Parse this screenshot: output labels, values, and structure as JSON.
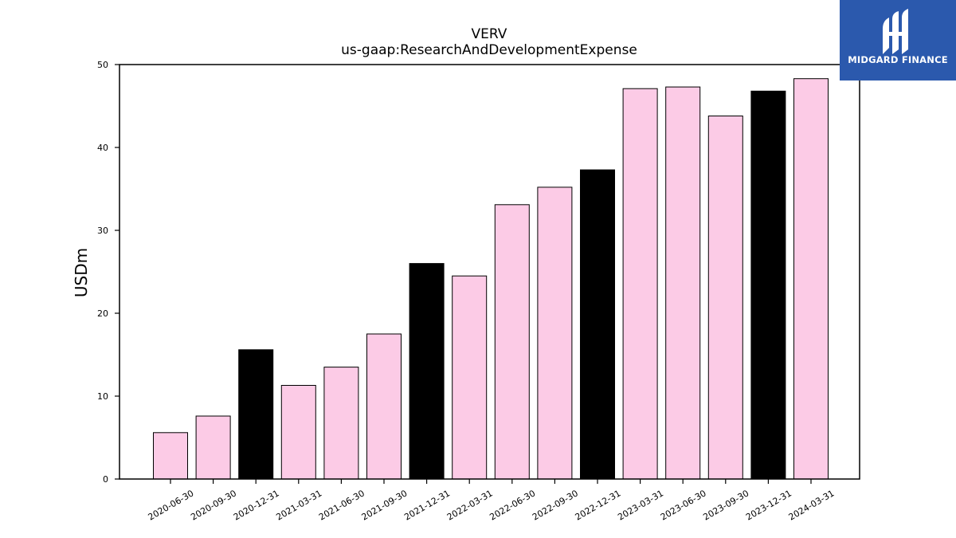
{
  "logo": {
    "text": "MIDGARD FINANCE"
  },
  "chart_data": {
    "type": "bar",
    "title": "VERV",
    "subtitle": "us-gaap:ResearchAndDevelopmentExpense",
    "xlabel": "",
    "ylabel": "USDm",
    "ylim": [
      0,
      50
    ],
    "yticks": [
      0,
      10,
      20,
      30,
      40,
      50
    ],
    "grid": false,
    "categories": [
      "2020-06-30",
      "2020-09-30",
      "2020-12-31",
      "2021-03-31",
      "2021-06-30",
      "2021-09-30",
      "2021-12-31",
      "2022-03-31",
      "2022-06-30",
      "2022-09-30",
      "2022-12-31",
      "2023-03-31",
      "2023-06-30",
      "2023-09-30",
      "2023-12-31",
      "2024-03-31"
    ],
    "values": [
      5.6,
      7.6,
      15.6,
      11.3,
      13.5,
      17.5,
      26.0,
      24.5,
      33.1,
      35.2,
      37.3,
      47.1,
      47.3,
      43.8,
      46.8,
      48.3
    ],
    "colors": {
      "default": "#fccbe6",
      "year_end": "#000000",
      "bar_edge": "#000000"
    },
    "highlighted_categories": [
      "2020-12-31",
      "2021-12-31",
      "2022-12-31",
      "2023-12-31"
    ]
  }
}
